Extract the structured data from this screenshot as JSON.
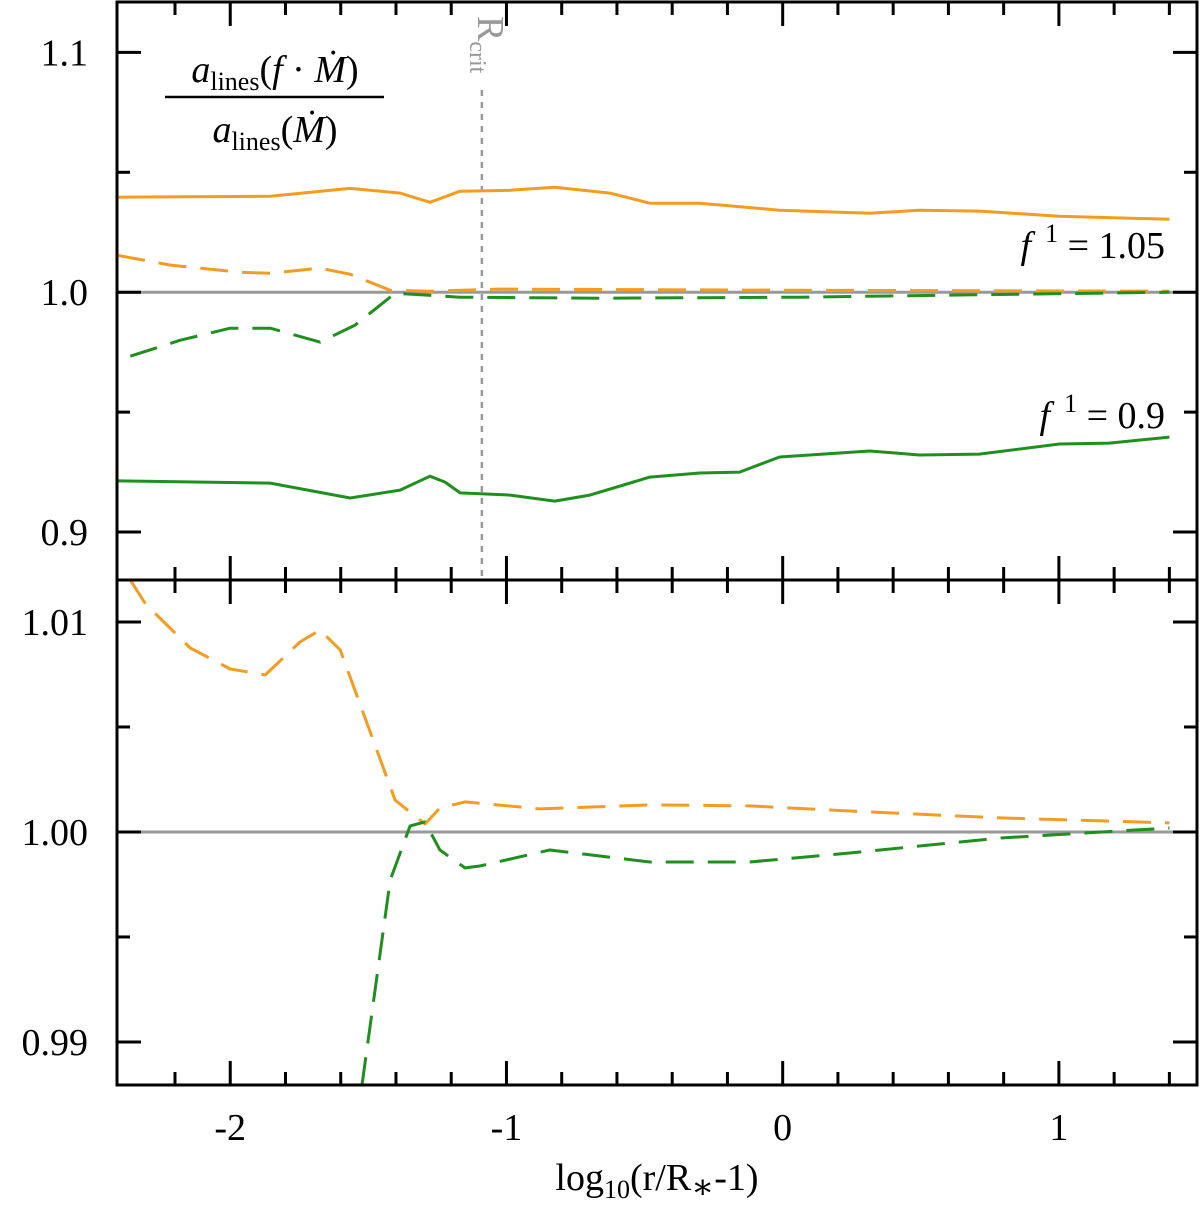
{
  "chart_data": [
    {
      "type": "line",
      "xlim": [
        -2.41,
        1.5
      ],
      "ylim": [
        0.88,
        1.121
      ],
      "xticks": [
        -2,
        -1,
        0,
        1
      ],
      "xminorticks": [
        -2.2,
        -1.8,
        -1.6,
        -1.4,
        -1.2,
        -0.8,
        -0.6,
        -0.4,
        -0.2,
        0.2,
        0.4,
        0.6,
        0.8,
        1.2,
        1.4
      ],
      "yticks": [
        1.1,
        {
          "value": 1.0,
          "label": "1.0"
        },
        0.9
      ],
      "yminorticks": [
        1.05,
        0.95
      ],
      "hline": {
        "value": 1.0,
        "color": "#999999"
      },
      "rcrit": {
        "x": -1.089,
        "label": "R",
        "sub": "crit",
        "color": "#999999"
      },
      "ylabel": {
        "numerator": [
          "a",
          "lines",
          "(",
          "f",
          " · ",
          "Ṁ",
          ")"
        ],
        "denominator": [
          "a",
          "lines",
          "(",
          "Ṁ",
          ")"
        ]
      },
      "annotations": [
        [
          "f",
          "1",
          " = 1.05"
        ],
        [
          "f",
          "1",
          " = 0.9"
        ]
      ],
      "series": [
        {
          "color": "#f39c1f",
          "dash": false,
          "x": [
            -2.409,
            -1.855,
            -1.566,
            -1.385,
            -1.277,
            -1.168,
            -0.987,
            -0.825,
            -0.626,
            -0.481,
            -0.3,
            -0.011,
            0.315,
            0.495,
            0.712,
            1.002,
            1.4
          ],
          "values": [
            1.0396,
            1.04,
            1.0433,
            1.0413,
            1.0375,
            1.0421,
            1.0425,
            1.0438,
            1.0413,
            1.0371,
            1.0371,
            1.0342,
            1.0329,
            1.0342,
            1.0338,
            1.0317,
            1.0304
          ]
        },
        {
          "color": "#f39c1f",
          "dash": true,
          "x": [
            -2.409,
            -2.217,
            -1.964,
            -1.855,
            -1.675,
            -1.566,
            -1.421,
            -1.277,
            -1.024,
            0.061,
            1.4
          ],
          "values": [
            1.0154,
            1.0113,
            1.0083,
            1.0079,
            1.01,
            1.0075,
            1.0008,
            1.0004,
            1.0013,
            1.0008,
            1.0004
          ]
        },
        {
          "color": "#1f8f1f",
          "dash": true,
          "x": [
            -2.362,
            -2.181,
            -2.0,
            -1.855,
            -1.675,
            -1.548,
            -1.403,
            -1.168,
            -0.662,
            0.061,
            1.4
          ],
          "values": [
            0.9733,
            0.98,
            0.985,
            0.985,
            0.9792,
            0.9863,
            0.9996,
            0.9979,
            0.9975,
            0.9979,
            1.0
          ]
        },
        {
          "color": "#1f8f1f",
          "dash": false,
          "x": [
            -2.409,
            -1.855,
            -1.566,
            -1.385,
            -1.277,
            -1.222,
            -1.168,
            -0.987,
            -0.825,
            -0.698,
            -0.481,
            -0.3,
            -0.156,
            -0.011,
            0.315,
            0.495,
            0.712,
            1.002,
            1.183,
            1.4
          ],
          "values": [
            0.9213,
            0.9204,
            0.9142,
            0.9175,
            0.9233,
            0.9208,
            0.9163,
            0.9154,
            0.9129,
            0.9154,
            0.9229,
            0.9246,
            0.925,
            0.9313,
            0.9338,
            0.9321,
            0.9325,
            0.9367,
            0.9371,
            0.9396
          ]
        }
      ]
    },
    {
      "type": "line",
      "xlim": [
        -2.41,
        1.5
      ],
      "ylim": [
        0.98795,
        1.012
      ],
      "xticks": [
        -2,
        -1,
        0,
        1
      ],
      "xminorticks": [
        -2.2,
        -1.8,
        -1.6,
        -1.4,
        -1.2,
        -0.8,
        -0.6,
        -0.4,
        -0.2,
        0.2,
        0.4,
        0.6,
        0.8,
        1.2,
        1.4
      ],
      "yticks": [
        1.01,
        {
          "value": 1.0,
          "label": "1.00"
        },
        0.99
      ],
      "yminorticks": [
        1.005,
        0.995
      ],
      "hline": {
        "value": 1.0,
        "color": "#999999"
      },
      "xlabel": [
        "log",
        "10",
        "(r/R",
        "∗",
        "-1)"
      ],
      "series": [
        {
          "color": "#f39c1f",
          "dash": true,
          "x": [
            -2.362,
            -2.307,
            -2.145,
            -2.0,
            -1.873,
            -1.747,
            -1.675,
            -1.602,
            -1.403,
            -1.295,
            -1.241,
            -1.15,
            -0.879,
            -0.481,
            -0.119,
            0.242,
            0.785,
            1.4
          ],
          "values": [
            1.012,
            1.01086,
            1.00876,
            1.00776,
            1.00748,
            1.00905,
            1.00962,
            1.00867,
            1.00152,
            1.00038,
            1.00114,
            1.00143,
            1.0011,
            1.00129,
            1.00124,
            1.001,
            1.00067,
            1.00043
          ]
        },
        {
          "color": "#1f8f1f",
          "dash": true,
          "x": [
            -1.523,
            -1.421,
            -1.349,
            -1.295,
            -1.241,
            -1.15,
            -1.096,
            -0.843,
            -0.481,
            -0.119,
            0.242,
            0.785,
            1.4
          ],
          "values": [
            0.98795,
            0.99771,
            1.00029,
            1.00048,
            0.99914,
            0.99829,
            0.99838,
            0.99914,
            0.99857,
            0.99857,
            0.999,
            0.99971,
            1.00019
          ]
        }
      ]
    }
  ]
}
